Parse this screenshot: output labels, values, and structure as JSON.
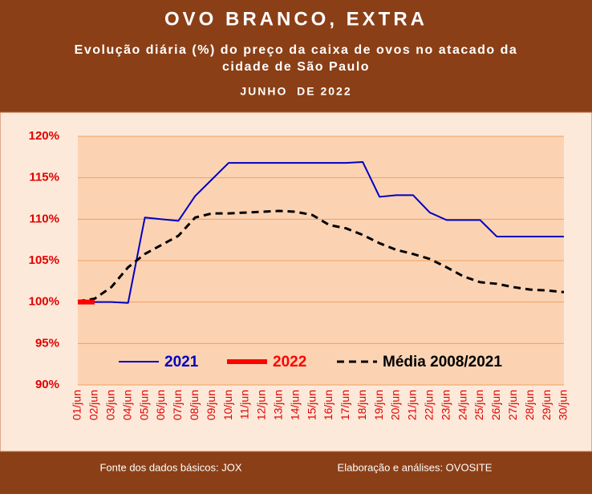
{
  "chart_data": {
    "type": "line",
    "title": "OVO BRANCO, EXTRA",
    "subtitle": [
      "Evolução diária (%) do preço da caixa de ovos no atacado da",
      "cidade de São Paulo"
    ],
    "period": "JUNHO  DE 2022",
    "source": "Fonte dos dados básicos: JOX",
    "credit": "Elaboração e análises: OVOSITE",
    "categories": [
      "01/jun",
      "02/jun",
      "03/jun",
      "04/jun",
      "05/jun",
      "06/jun",
      "07/jun",
      "08/jun",
      "09/jun",
      "10/jun",
      "11/jun",
      "12/jun",
      "13/jun",
      "14/jun",
      "15/jun",
      "16/jun",
      "17/jun",
      "18/jun",
      "19/jun",
      "20/jun",
      "21/jun",
      "22/jun",
      "23/jun",
      "24/jun",
      "25/jun",
      "26/jun",
      "27/jun",
      "28/jun",
      "29/jun",
      "30/jun"
    ],
    "series": [
      {
        "name": "2021",
        "color": "#0000c0",
        "width": 2,
        "dashed": false,
        "values": [
          100,
          100,
          100,
          99.9,
          110.2,
          110,
          109.8,
          112.8,
          114.8,
          116.8,
          116.8,
          116.8,
          116.8,
          116.8,
          116.8,
          116.8,
          116.8,
          116.9,
          112.7,
          112.9,
          112.9,
          110.8,
          109.9,
          109.9,
          109.9,
          107.9,
          107.9,
          107.9,
          107.9,
          107.9
        ]
      },
      {
        "name": "2022",
        "color": "#ff0000",
        "width": 6,
        "dashed": false,
        "values": [
          100,
          100,
          null,
          null,
          null,
          null,
          null,
          null,
          null,
          null,
          null,
          null,
          null,
          null,
          null,
          null,
          null,
          null,
          null,
          null,
          null,
          null,
          null,
          null,
          null,
          null,
          null,
          null,
          null,
          null
        ]
      },
      {
        "name": "Média 2008/2021",
        "color": "#000000",
        "width": 3,
        "dashed": true,
        "values": [
          100.1,
          100.4,
          101.8,
          104.2,
          105.8,
          106.9,
          108,
          110.2,
          110.7,
          110.7,
          110.8,
          110.9,
          111,
          110.9,
          110.5,
          109.3,
          108.9,
          108.1,
          107.1,
          106.3,
          105.8,
          105.2,
          104.2,
          103.1,
          102.4,
          102.2,
          101.8,
          101.5,
          101.4,
          101.2
        ]
      }
    ],
    "ylim": [
      90,
      120
    ],
    "yticks": [
      {
        "value": 90,
        "label": "90%"
      },
      {
        "value": 95,
        "label": "95%"
      },
      {
        "value": 100,
        "label": "100%"
      },
      {
        "value": 105,
        "label": "105%"
      },
      {
        "value": 110,
        "label": "110%"
      },
      {
        "value": 115,
        "label": "115%"
      },
      {
        "value": 120,
        "label": "120%"
      }
    ],
    "grid": true
  }
}
